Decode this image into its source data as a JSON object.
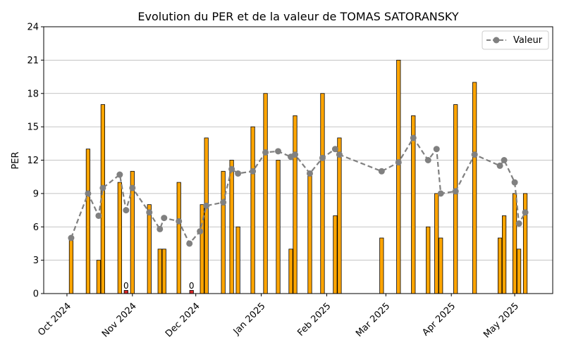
{
  "chart_data": {
    "type": "bar",
    "title": "Evolution du PER et de la valeur de TOMAS SATORANSKY",
    "xlabel": "",
    "ylabel": "PER",
    "ylim": [
      0,
      24
    ],
    "yticks": [
      0,
      3,
      6,
      9,
      12,
      15,
      18,
      21,
      24
    ],
    "xlim": [
      "2024-09-20",
      "2025-05-19"
    ],
    "xticks": [
      {
        "date": "2024-10-01",
        "label": "Oct 2024"
      },
      {
        "date": "2024-11-01",
        "label": "Nov 2024"
      },
      {
        "date": "2024-12-01",
        "label": "Dec 2024"
      },
      {
        "date": "2025-01-01",
        "label": "Jan 2025"
      },
      {
        "date": "2025-02-01",
        "label": "Feb 2025"
      },
      {
        "date": "2025-03-01",
        "label": "Mar 2025"
      },
      {
        "date": "2025-04-01",
        "label": "Apr 2025"
      },
      {
        "date": "2025-05-01",
        "label": "May 2025"
      }
    ],
    "grid": "y",
    "legend": {
      "position": "upper-right",
      "entries": [
        "Valeur"
      ]
    },
    "colors": {
      "bar": "#FFA500",
      "bar_zero": "#D62728",
      "bar_edge": "#000000",
      "line": "#808080",
      "grid": "#B0B0B0"
    },
    "series": [
      {
        "name": "PER",
        "kind": "bar",
        "points": [
          {
            "x": "2024-10-03",
            "y": 5
          },
          {
            "x": "2024-10-11",
            "y": 13
          },
          {
            "x": "2024-10-16",
            "y": 3
          },
          {
            "x": "2024-10-18",
            "y": 17
          },
          {
            "x": "2024-10-26",
            "y": 10
          },
          {
            "x": "2024-10-29",
            "y": 0
          },
          {
            "x": "2024-11-01",
            "y": 11
          },
          {
            "x": "2024-11-09",
            "y": 8
          },
          {
            "x": "2024-11-14",
            "y": 4
          },
          {
            "x": "2024-11-16",
            "y": 4
          },
          {
            "x": "2024-11-23",
            "y": 10
          },
          {
            "x": "2024-11-29",
            "y": 0
          },
          {
            "x": "2024-12-04",
            "y": 8
          },
          {
            "x": "2024-12-06",
            "y": 14
          },
          {
            "x": "2024-12-14",
            "y": 11
          },
          {
            "x": "2024-12-18",
            "y": 12
          },
          {
            "x": "2024-12-21",
            "y": 6
          },
          {
            "x": "2024-12-28",
            "y": 15
          },
          {
            "x": "2025-01-03",
            "y": 18
          },
          {
            "x": "2025-01-09",
            "y": 12
          },
          {
            "x": "2025-01-15",
            "y": 4
          },
          {
            "x": "2025-01-17",
            "y": 16
          },
          {
            "x": "2025-01-24",
            "y": 11
          },
          {
            "x": "2025-01-30",
            "y": 18
          },
          {
            "x": "2025-02-05",
            "y": 7
          },
          {
            "x": "2025-02-07",
            "y": 14
          },
          {
            "x": "2025-02-27",
            "y": 5
          },
          {
            "x": "2025-03-07",
            "y": 21
          },
          {
            "x": "2025-03-14",
            "y": 16
          },
          {
            "x": "2025-03-21",
            "y": 6
          },
          {
            "x": "2025-03-25",
            "y": 9
          },
          {
            "x": "2025-03-27",
            "y": 5
          },
          {
            "x": "2025-04-03",
            "y": 17
          },
          {
            "x": "2025-04-12",
            "y": 19
          },
          {
            "x": "2025-04-24",
            "y": 5
          },
          {
            "x": "2025-04-26",
            "y": 7
          },
          {
            "x": "2025-05-01",
            "y": 9
          },
          {
            "x": "2025-05-03",
            "y": 4
          },
          {
            "x": "2025-05-06",
            "y": 9
          }
        ],
        "value_labels": [
          {
            "x": "2024-10-29",
            "text": "0"
          },
          {
            "x": "2024-11-29",
            "text": "0"
          }
        ]
      },
      {
        "name": "Valeur",
        "kind": "line",
        "points": [
          {
            "x": "2024-10-03",
            "y": 5
          },
          {
            "x": "2024-10-11",
            "y": 9
          },
          {
            "x": "2024-10-16",
            "y": 7
          },
          {
            "x": "2024-10-18",
            "y": 9.5
          },
          {
            "x": "2024-10-26",
            "y": 10.7
          },
          {
            "x": "2024-10-29",
            "y": 7.5
          },
          {
            "x": "2024-11-01",
            "y": 9.5
          },
          {
            "x": "2024-11-09",
            "y": 7.3
          },
          {
            "x": "2024-11-14",
            "y": 5.8
          },
          {
            "x": "2024-11-16",
            "y": 6.8
          },
          {
            "x": "2024-11-23",
            "y": 6.5
          },
          {
            "x": "2024-11-28",
            "y": 4.5
          },
          {
            "x": "2024-12-03",
            "y": 5.6
          },
          {
            "x": "2024-12-06",
            "y": 7.9
          },
          {
            "x": "2024-12-14",
            "y": 8.2
          },
          {
            "x": "2024-12-18",
            "y": 11.2
          },
          {
            "x": "2024-12-21",
            "y": 10.8
          },
          {
            "x": "2024-12-28",
            "y": 11
          },
          {
            "x": "2025-01-03",
            "y": 12.7
          },
          {
            "x": "2025-01-09",
            "y": 12.8
          },
          {
            "x": "2025-01-15",
            "y": 12.3
          },
          {
            "x": "2025-01-17",
            "y": 12.5
          },
          {
            "x": "2025-01-24",
            "y": 10.8
          },
          {
            "x": "2025-01-30",
            "y": 12.2
          },
          {
            "x": "2025-02-05",
            "y": 13
          },
          {
            "x": "2025-02-07",
            "y": 12.5
          },
          {
            "x": "2025-02-27",
            "y": 11
          },
          {
            "x": "2025-03-07",
            "y": 11.8
          },
          {
            "x": "2025-03-14",
            "y": 14
          },
          {
            "x": "2025-03-21",
            "y": 12
          },
          {
            "x": "2025-03-25",
            "y": 13
          },
          {
            "x": "2025-03-27",
            "y": 9
          },
          {
            "x": "2025-04-03",
            "y": 9.2
          },
          {
            "x": "2025-04-12",
            "y": 12.5
          },
          {
            "x": "2025-04-24",
            "y": 11.5
          },
          {
            "x": "2025-04-26",
            "y": 12
          },
          {
            "x": "2025-05-01",
            "y": 10
          },
          {
            "x": "2025-05-03",
            "y": 6.3
          },
          {
            "x": "2025-05-06",
            "y": 7.3
          }
        ]
      }
    ]
  }
}
